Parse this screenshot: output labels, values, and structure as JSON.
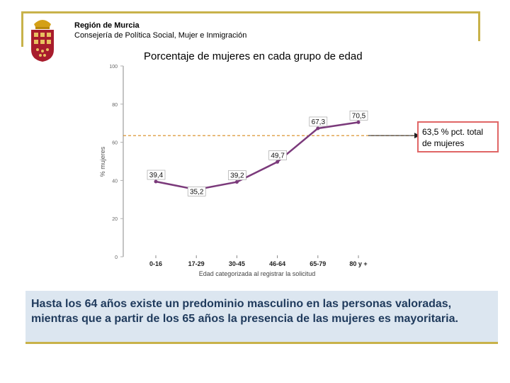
{
  "header": {
    "org_name": "Región de Murcia",
    "org_sub": "Consejería de Política Social, Mujer e Inmigración"
  },
  "chart_data": {
    "type": "line",
    "title": "Porcentaje de mujeres en cada grupo de edad",
    "xlabel": "Edad categorizada al registrar la solicitud",
    "ylabel": "% mujeres",
    "categories": [
      "0-16",
      "17-29",
      "30-45",
      "46-64",
      "65-79",
      "80 y +"
    ],
    "values": [
      39.4,
      35.2,
      39.2,
      49.7,
      67.3,
      70.5
    ],
    "value_labels": [
      "39,4",
      "35,2",
      "39,2",
      "49,7",
      "67,3",
      "70,5"
    ],
    "ylim": [
      0,
      100
    ],
    "yticks": [
      0,
      20,
      40,
      60,
      80,
      100
    ],
    "ytick_labels": [
      "0",
      "20",
      "40",
      "60",
      "80",
      "100"
    ],
    "reference": {
      "value": 63.5
    },
    "line_color": "#7b3a7b",
    "reference_color": "#d98a1a",
    "grid": false
  },
  "callout": {
    "text_line1": "63,5 % pct. total",
    "text_line2": "de mujeres"
  },
  "note": {
    "text": "Hasta los 64 años existe un predominio masculino en las personas valoradas, mientras que a partir de los 65 años la presencia de las mujeres es mayoritaria."
  }
}
